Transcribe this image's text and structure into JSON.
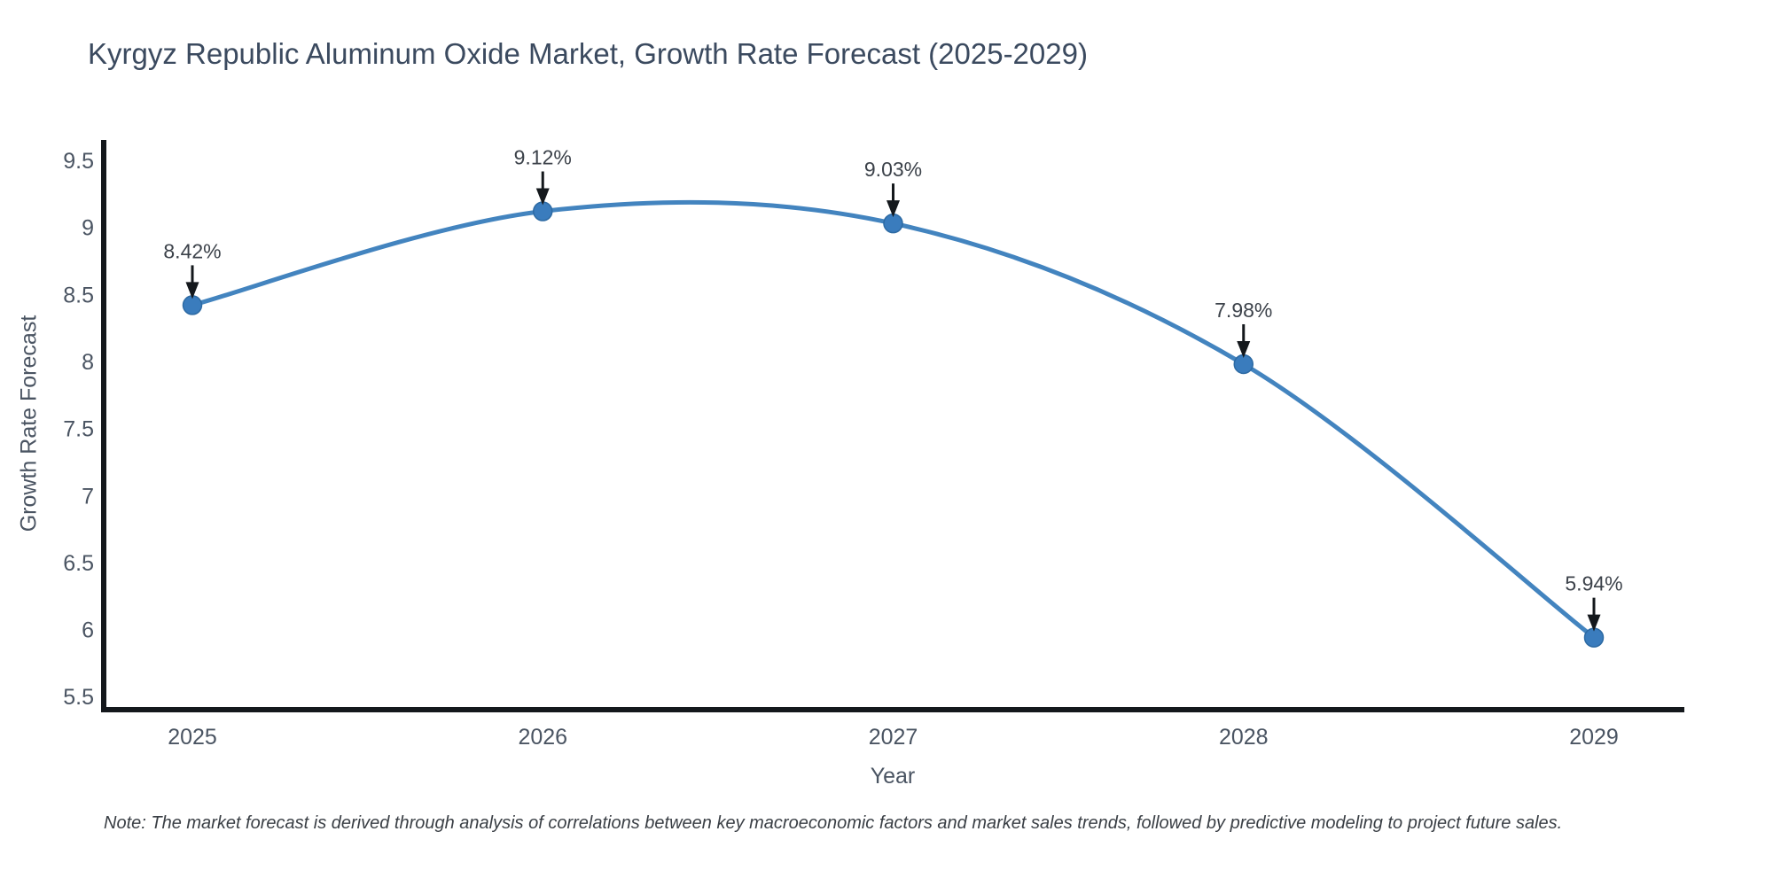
{
  "chart_data": {
    "type": "line",
    "title": "Kyrgyz Republic Aluminum Oxide Market, Growth Rate Forecast (2025-2029)",
    "xlabel": "Year",
    "ylabel": "Growth Rate Forecast",
    "categories": [
      "2025",
      "2026",
      "2027",
      "2028",
      "2029"
    ],
    "values": [
      8.42,
      9.12,
      9.03,
      7.98,
      5.94
    ],
    "point_labels": [
      "8.42%",
      "9.12%",
      "9.03%",
      "7.98%",
      "5.94%"
    ],
    "yticks": [
      9.5,
      9,
      8.5,
      8,
      7.5,
      7,
      6.5,
      6,
      5.5
    ],
    "ylim": [
      5.36,
      9.64
    ],
    "line_shape": "spline",
    "grid": false,
    "legend_position": "none",
    "note": "Note: The market forecast is derived through analysis of correlations between key macroeconomic factors and market sales trends, followed by predictive modeling to project future sales.",
    "colors": {
      "line": "#4384bf",
      "marker": "#3a7cbd",
      "marker_edge": "#2d6aa3",
      "axis_line": "#14181c",
      "arrow": "#14181c",
      "title_text": "#3b4a5f",
      "tick_text": "#4a5462",
      "label_text": "#3c424a",
      "note_text": "#3a3f45"
    }
  }
}
